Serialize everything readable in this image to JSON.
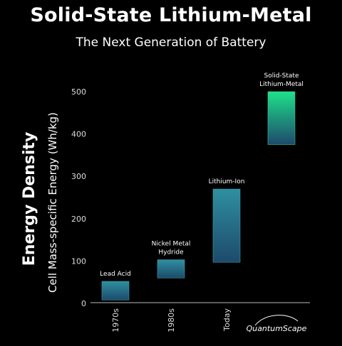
{
  "title": "Solid-State Lithium-Metal",
  "subtitle": "The Next Generation of Battery",
  "logo_text": "QuantumScape",
  "chart_data": {
    "type": "bar",
    "title": "Solid-State Lithium-Metal",
    "subtitle": "The Next Generation of Battery",
    "ylabel_main": "Energy Density",
    "ylabel_sub": "Cell Mass-specific Energy (Wh/kg)",
    "xlabel": "",
    "ylim": [
      0,
      500
    ],
    "yticks": [
      "0",
      "100",
      "200",
      "300",
      "400",
      "500"
    ],
    "categories": [
      "1970s",
      "1980s",
      "Today",
      ""
    ],
    "bars": [
      {
        "label": "Lead Acid",
        "category": "1970s",
        "low": 8,
        "high": 52
      },
      {
        "label": "Nickel Metal Hydride",
        "category": "1980s",
        "low": 60,
        "high": 103
      },
      {
        "label": "Lithium-Ion",
        "category": "Today",
        "low": 97,
        "high": 270
      },
      {
        "label": "Solid-State Lithium-Metal",
        "category": "",
        "low": 375,
        "high": 500
      }
    ],
    "grid": false,
    "legend": "none",
    "colors": {
      "bar_top": "#2f8fa0",
      "bar_bottom": "#1d4a6b",
      "bar_top_ss": "#1fe08a",
      "axis": "#cccccc"
    }
  }
}
